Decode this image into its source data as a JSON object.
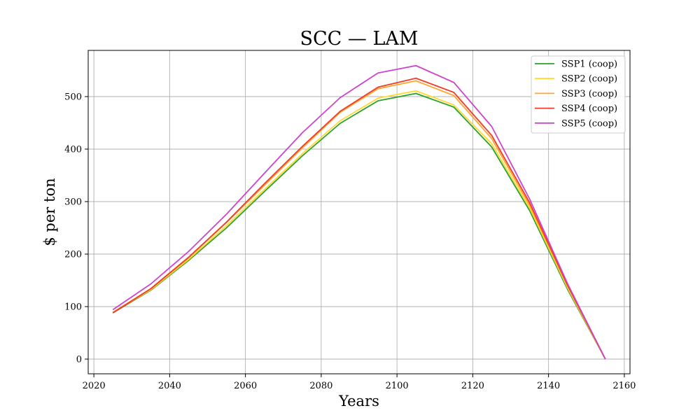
{
  "chart_data": {
    "type": "line",
    "title": "SCC — LAM",
    "xlabel": "Years",
    "ylabel": "$ per ton",
    "xlim": [
      2018.5,
      2161.5
    ],
    "ylim": [
      -28,
      588
    ],
    "xticks": [
      2020,
      2040,
      2060,
      2080,
      2100,
      2120,
      2140,
      2160
    ],
    "yticks": [
      0,
      100,
      200,
      300,
      400,
      500
    ],
    "grid": true,
    "legend_position": "top-right",
    "x": [
      2025,
      2035,
      2045,
      2055,
      2065,
      2075,
      2085,
      2095,
      2105,
      2115,
      2125,
      2135,
      2145,
      2155
    ],
    "series": [
      {
        "name": "SSP1 (coop)",
        "color": "#2ca02c",
        "values": [
          88,
          131,
          188,
          250,
          319,
          387,
          449,
          492,
          506,
          480,
          404,
          283,
          133,
          0
        ]
      },
      {
        "name": "SSP2 (coop)",
        "color": "#ffd92f",
        "values": [
          89,
          132,
          190,
          254,
          323,
          391,
          454,
          497,
          511,
          484,
          410,
          288,
          136,
          0
        ]
      },
      {
        "name": "SSP3 (coop)",
        "color": "#ffa531",
        "values": [
          89,
          134,
          193,
          260,
          331,
          402,
          470,
          515,
          530,
          502,
          420,
          293,
          139,
          0
        ]
      },
      {
        "name": "SSP4 (coop)",
        "color": "#f03c28",
        "values": [
          88,
          134,
          194,
          261,
          334,
          405,
          472,
          518,
          535,
          508,
          426,
          298,
          141,
          0
        ]
      },
      {
        "name": "SSP5 (coop)",
        "color": "#cc44cc",
        "values": [
          94,
          143,
          205,
          276,
          354,
          431,
          498,
          545,
          559,
          527,
          443,
          305,
          144,
          0
        ]
      }
    ]
  }
}
